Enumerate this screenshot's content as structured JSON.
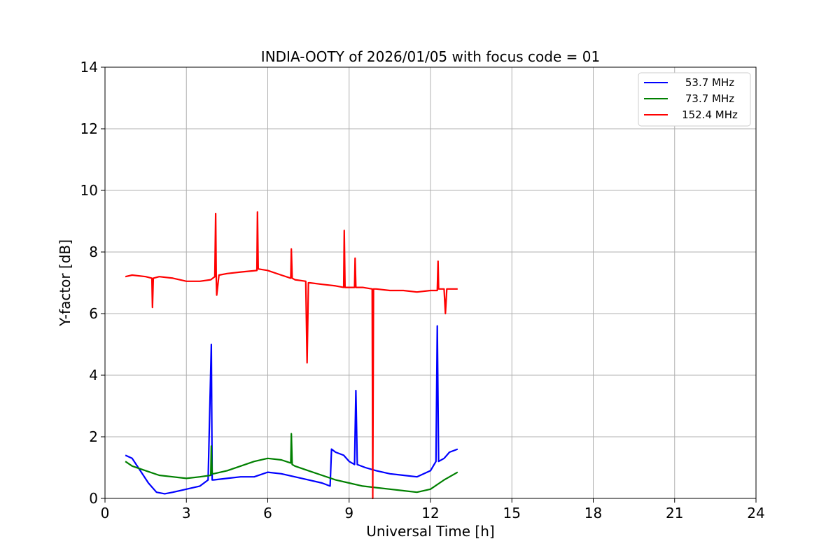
{
  "chart_data": {
    "type": "line",
    "title": "INDIA-OOTY of 2026/01/05 with focus code = 01",
    "xlabel": "Universal Time [h]",
    "ylabel": "Y-factor [dB]",
    "xlim": [
      0,
      24
    ],
    "ylim": [
      0,
      14
    ],
    "xticks": [
      0,
      3,
      6,
      9,
      12,
      15,
      18,
      21,
      24
    ],
    "yticks": [
      0,
      2,
      4,
      6,
      8,
      10,
      12,
      14
    ],
    "grid": true,
    "legend_position": "top-right",
    "series": [
      {
        "name": "53.7 MHz",
        "color": "#0000ff",
        "x": [
          0.75,
          1.0,
          1.3,
          1.6,
          1.9,
          2.2,
          2.5,
          3.0,
          3.5,
          3.8,
          3.92,
          3.95,
          4.0,
          4.5,
          5.0,
          5.5,
          6.0,
          6.5,
          7.0,
          7.5,
          8.0,
          8.3,
          8.35,
          8.5,
          8.8,
          9.0,
          9.2,
          9.25,
          9.3,
          9.6,
          10.0,
          10.5,
          11.0,
          11.5,
          12.0,
          12.2,
          12.25,
          12.3,
          12.5,
          12.6,
          12.7,
          13.0
        ],
        "y": [
          1.4,
          1.3,
          0.9,
          0.5,
          0.2,
          0.15,
          0.2,
          0.3,
          0.4,
          0.6,
          5.0,
          0.6,
          0.6,
          0.65,
          0.7,
          0.7,
          0.85,
          0.8,
          0.7,
          0.6,
          0.5,
          0.4,
          1.6,
          1.5,
          1.4,
          1.2,
          1.1,
          3.5,
          1.1,
          1.0,
          0.9,
          0.8,
          0.75,
          0.7,
          0.9,
          1.2,
          5.6,
          1.2,
          1.3,
          1.4,
          1.5,
          1.6
        ]
      },
      {
        "name": "73.7 MHz",
        "color": "#008000",
        "x": [
          0.75,
          1.0,
          1.5,
          2.0,
          2.5,
          3.0,
          3.5,
          3.9,
          3.92,
          3.95,
          4.0,
          4.5,
          5.0,
          5.5,
          6.0,
          6.5,
          6.85,
          6.87,
          6.9,
          7.0,
          7.5,
          8.0,
          8.5,
          9.0,
          9.5,
          10.0,
          10.5,
          11.0,
          11.5,
          12.0,
          12.5,
          13.0
        ],
        "y": [
          1.2,
          1.05,
          0.9,
          0.75,
          0.7,
          0.65,
          0.7,
          0.75,
          1.7,
          0.8,
          0.8,
          0.9,
          1.05,
          1.2,
          1.3,
          1.25,
          1.15,
          2.1,
          1.1,
          1.05,
          0.9,
          0.75,
          0.6,
          0.5,
          0.4,
          0.35,
          0.3,
          0.25,
          0.2,
          0.3,
          0.6,
          0.85
        ]
      },
      {
        "name": "152.4 MHz",
        "color": "#ff0000",
        "x": [
          0.75,
          1.0,
          1.5,
          1.73,
          1.75,
          1.78,
          2.0,
          2.5,
          3.0,
          3.5,
          3.9,
          4.05,
          4.08,
          4.1,
          4.12,
          4.2,
          4.5,
          5.0,
          5.6,
          5.62,
          5.65,
          6.0,
          6.5,
          6.85,
          6.87,
          6.9,
          7.0,
          7.4,
          7.45,
          7.5,
          7.55,
          8.0,
          8.5,
          8.8,
          8.82,
          8.85,
          9.0,
          9.2,
          9.22,
          9.25,
          9.5,
          9.85,
          9.87,
          9.9,
          10.0,
          10.5,
          11.0,
          11.5,
          12.0,
          12.25,
          12.28,
          12.3,
          12.5,
          12.55,
          12.6,
          13.0
        ],
        "y": [
          7.2,
          7.25,
          7.2,
          7.15,
          6.2,
          7.15,
          7.2,
          7.15,
          7.05,
          7.05,
          7.1,
          7.2,
          9.25,
          7.2,
          6.6,
          7.25,
          7.3,
          7.35,
          7.4,
          9.3,
          7.45,
          7.4,
          7.25,
          7.15,
          8.1,
          7.15,
          7.1,
          7.05,
          4.4,
          7.0,
          7.0,
          6.95,
          6.9,
          6.85,
          8.7,
          6.85,
          6.85,
          6.85,
          7.8,
          6.85,
          6.85,
          6.8,
          0.0,
          6.8,
          6.8,
          6.75,
          6.75,
          6.7,
          6.75,
          6.75,
          7.7,
          6.8,
          6.8,
          6.0,
          6.8,
          6.8
        ]
      }
    ]
  }
}
